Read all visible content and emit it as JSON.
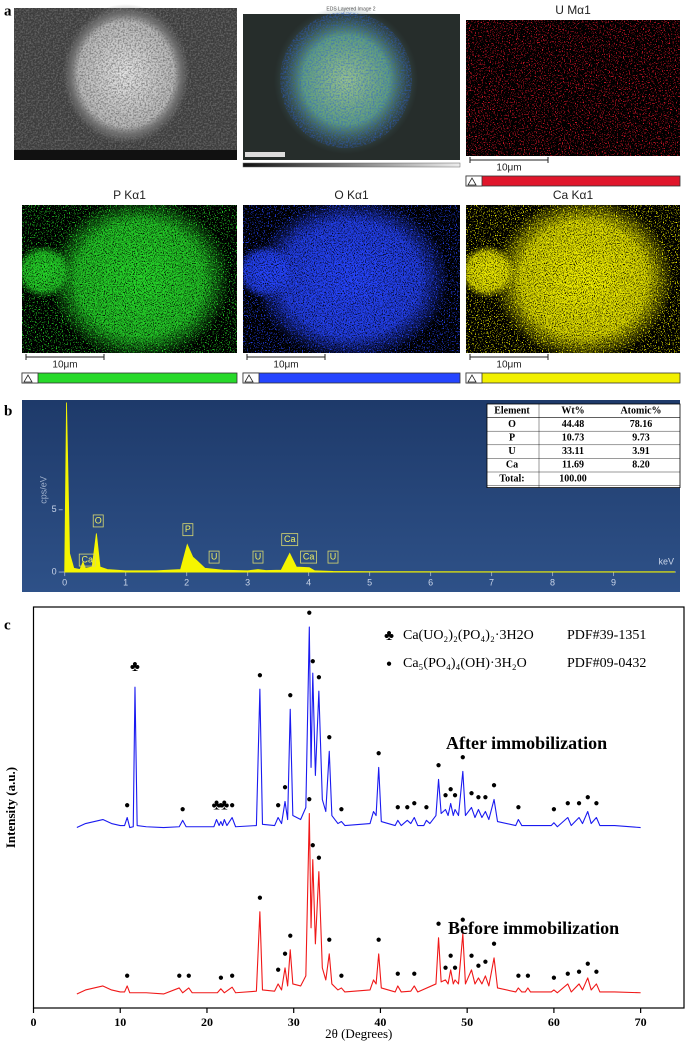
{
  "panel_a": {
    "label": "a",
    "layered_title": "EDS Layered Image 2",
    "maps": [
      {
        "title": "U Mα1",
        "scale": "10μm",
        "color": "#e0162b"
      },
      {
        "title": "P Kα1",
        "scale": "10μm",
        "color": "#27d92a"
      },
      {
        "title": "O Kα1",
        "scale": "10μm",
        "color": "#2545ff"
      },
      {
        "title": "Ca Kα1",
        "scale": "10μm",
        "color": "#f2f000"
      }
    ]
  },
  "chart_data": [
    {
      "type": "area",
      "panel_label": "b",
      "y_label": "cps/eV",
      "x_label": "keV",
      "xlim": [
        -0.7,
        10.09
      ],
      "ylim": [
        -1.6,
        13.8
      ],
      "xticks": [
        0,
        1,
        2,
        3,
        4,
        5,
        6,
        7,
        8,
        9
      ],
      "yticks": [
        0,
        5
      ],
      "series": [
        {
          "color": "#f5f500",
          "x": [
            0,
            0.03,
            0.08,
            0.15,
            0.25,
            0.3,
            0.34,
            0.45,
            0.52,
            0.58,
            0.7,
            1.0,
            1.5,
            1.9,
            2.01,
            2.1,
            2.17,
            2.3,
            2.6,
            3.0,
            3.17,
            3.3,
            3.55,
            3.69,
            3.8,
            4.01,
            4.1,
            4.4,
            5,
            7,
            10
          ],
          "values": [
            0,
            13.6,
            1.5,
            0.3,
            0.2,
            0.8,
            0.3,
            0.4,
            3.1,
            0.4,
            0.2,
            0.1,
            0.1,
            0.2,
            2.2,
            1.2,
            0.9,
            0.3,
            0.15,
            0.1,
            0.2,
            0.12,
            0.15,
            1.5,
            0.4,
            0.35,
            0.1,
            0.05,
            0.03,
            0.02,
            0.02
          ]
        }
      ],
      "peak_labels": [
        {
          "label": "Ca",
          "x": 0.37,
          "y": 0.96
        },
        {
          "label": "O",
          "x": 0.55,
          "y": 4.1
        },
        {
          "label": "P",
          "x": 2.02,
          "y": 3.4
        },
        {
          "label": "U",
          "x": 2.45,
          "y": 1.2
        },
        {
          "label": "U",
          "x": 3.17,
          "y": 1.2
        },
        {
          "label": "Ca",
          "x": 3.69,
          "y": 2.6
        },
        {
          "label": "Ca",
          "x": 4.0,
          "y": 1.2
        },
        {
          "label": "U",
          "x": 4.4,
          "y": 1.2
        }
      ],
      "table": {
        "columns": [
          "Element",
          "Wt%",
          "Atomic%"
        ],
        "rows": [
          [
            "O",
            "44.48",
            "78.16"
          ],
          [
            "P",
            "10.73",
            "9.73"
          ],
          [
            "U",
            "33.11",
            "3.91"
          ],
          [
            "Ca",
            "11.69",
            "8.20"
          ],
          [
            "Total:",
            "100.00"
          ]
        ]
      }
    },
    {
      "type": "line",
      "panel_label": "c",
      "x_label": "2θ (Degrees)",
      "y_label": "Intensity (a.u.)",
      "xlim": [
        0,
        75
      ],
      "ylim": [
        0,
        100
      ],
      "xticks": [
        0,
        10,
        20,
        30,
        40,
        50,
        60,
        70
      ],
      "phases": [
        {
          "symbol": "♣",
          "formula": "Ca(UO₂)₂(PO₄)₂·3H2O",
          "pdf": "PDF#39-1351"
        },
        {
          "symbol": "●",
          "formula": "Ca₅(PO₄)₄(OH)·3H₂O",
          "pdf": "PDF#09-0432"
        }
      ],
      "series": [
        {
          "name": "After immobilization",
          "color": "#1a1af0",
          "x": [
            5,
            6,
            7,
            8,
            9,
            10,
            10.5,
            10.8,
            11.1,
            11.5,
            11.7,
            11.95,
            13,
            15,
            16.8,
            17.2,
            17.6,
            20.8,
            21.1,
            21.4,
            21.6,
            21.8,
            22.0,
            22.3,
            22.9,
            23.3,
            25.7,
            26.1,
            26.4,
            27.8,
            28.2,
            28.6,
            29.0,
            29.3,
            29.6,
            29.9,
            30.8,
            31.4,
            31.8,
            32.0,
            32.2,
            32.5,
            32.9,
            33.3,
            33.7,
            34.1,
            34.4,
            35.1,
            35.5,
            35.9,
            38.8,
            39.2,
            39.5,
            39.8,
            40.1,
            41.7,
            42.0,
            42.4,
            43.1,
            43.5,
            43.9,
            44.3,
            45.0,
            45.3,
            45.7,
            46.4,
            46.7,
            47.0,
            47.5,
            47.8,
            48.1,
            48.4,
            48.6,
            49.0,
            49.5,
            49.8,
            50.5,
            50.9,
            51.3,
            51.7,
            52.1,
            52.5,
            53.1,
            53.5,
            55.6,
            55.9,
            56.3,
            59.7,
            60.0,
            60.4,
            61.6,
            62.0,
            62.9,
            63.3,
            63.9,
            64.3,
            64.9,
            65.3,
            67,
            70
          ],
          "values": [
            45,
            46,
            46.5,
            47,
            46,
            45.5,
            45.5,
            47.5,
            45,
            45.2,
            80,
            45.5,
            45.2,
            45,
            45.2,
            46.8,
            45.2,
            45.2,
            47,
            45.5,
            46.5,
            45.5,
            47,
            45.5,
            47.5,
            45.2,
            45.5,
            79.5,
            45.8,
            45.5,
            47.5,
            46,
            51.5,
            47,
            74.5,
            48,
            47,
            50,
            95,
            60,
            83.5,
            58,
            79,
            52,
            49,
            64,
            48,
            46,
            46.5,
            45.5,
            46,
            49,
            48,
            60,
            46.5,
            45.5,
            46.8,
            45.5,
            46.8,
            46,
            47.5,
            45.5,
            45.5,
            46.8,
            46,
            48,
            57,
            48.5,
            49.5,
            48,
            51,
            48,
            49.5,
            48,
            59,
            48,
            50,
            47.5,
            49.5,
            47.5,
            49,
            47,
            52,
            46.5,
            45.5,
            47,
            45.5,
            45.5,
            46.2,
            45.2,
            47.5,
            45.5,
            47.5,
            46,
            49,
            46,
            47.5,
            45.5,
            45.5,
            45
          ],
          "phase_marks": [
            {
              "x": [
                11.7,
                21.1,
                22.0
              ],
              "y": [
                85,
                50.5,
                50.5
              ]
            },
            {
              "x": [
                10.8,
                17.2,
                21.6,
                22.9,
                26.1,
                28.2,
                29.0,
                29.6,
                31.8,
                32.2,
                32.9,
                34.1,
                35.5,
                39.8,
                42.0,
                43.1,
                43.9,
                45.3,
                46.7,
                47.5,
                48.1,
                48.6,
                49.5,
                50.5,
                51.3,
                52.1,
                53.1,
                55.9,
                60.0,
                61.6,
                62.9,
                63.9,
                64.9
              ],
              "y": [
                50.5,
                49.5,
                50.5,
                50.5,
                83,
                50.5,
                55,
                78,
                98.5,
                86.5,
                82.5,
                67.5,
                49.5,
                63.5,
                50,
                50,
                51,
                50,
                60.5,
                53,
                54.5,
                53,
                62.5,
                53.5,
                52.5,
                52.5,
                55.5,
                50,
                49.5,
                51,
                51,
                52.5,
                51
              ]
            }
          ]
        },
        {
          "name": "Before immobilization",
          "color": "#f01818",
          "x": [
            5,
            6,
            7,
            8,
            9,
            10,
            10.5,
            10.8,
            11.1,
            13,
            15,
            16.8,
            17.2,
            17.9,
            18.3,
            21.2,
            21.6,
            22.0,
            22.9,
            23.3,
            25.7,
            26.1,
            26.4,
            27.8,
            28.2,
            28.6,
            29.0,
            29.3,
            29.6,
            29.9,
            30.8,
            31.4,
            31.8,
            32.0,
            32.2,
            32.5,
            32.9,
            33.3,
            33.7,
            34.1,
            34.4,
            35.1,
            35.5,
            35.9,
            38.8,
            39.2,
            39.5,
            39.8,
            40.1,
            41.7,
            42.0,
            42.4,
            43.5,
            43.9,
            44.3,
            46.4,
            46.7,
            47.0,
            47.5,
            47.8,
            48.1,
            48.4,
            48.6,
            49.0,
            49.5,
            49.8,
            50.5,
            50.9,
            51.3,
            51.7,
            52.1,
            52.5,
            53.1,
            53.5,
            55.6,
            55.9,
            56.3,
            56.7,
            57.0,
            57.3,
            59.7,
            60.0,
            60.4,
            61.6,
            62.0,
            62.9,
            63.3,
            63.9,
            64.3,
            64.9,
            65.3,
            67,
            70
          ],
          "values": [
            3.5,
            4.5,
            5,
            5.5,
            4.5,
            4,
            4,
            5.5,
            3.8,
            3.8,
            3.5,
            5,
            3.8,
            5,
            3.8,
            3.8,
            4.8,
            3.8,
            5.2,
            3.8,
            4.2,
            24,
            4.5,
            4.2,
            6,
            4.5,
            10,
            5.5,
            14.5,
            6,
            5.5,
            8,
            48.5,
            20,
            37,
            16,
            34,
            10,
            7,
            13.5,
            6,
            4.5,
            5,
            4,
            4.5,
            7,
            6,
            13.5,
            5,
            4,
            5.5,
            4,
            4.2,
            5.5,
            4,
            6,
            17.5,
            6.5,
            7,
            6,
            9.5,
            6,
            7,
            6,
            18.5,
            6,
            9.5,
            6,
            7.5,
            6,
            8,
            5.5,
            12.5,
            5,
            4,
            5,
            4,
            4,
            5,
            4,
            4,
            4.5,
            3.8,
            6,
            4,
            6,
            4.5,
            7.5,
            4.5,
            6,
            4,
            4,
            3.8
          ],
          "phase_marks": [
            {
              "x": [],
              "y": []
            },
            {
              "x": [
                10.8,
                16.8,
                17.9,
                21.6,
                22.9,
                26.1,
                28.2,
                29.0,
                29.6,
                31.8,
                32.2,
                32.9,
                34.1,
                35.5,
                39.8,
                42.0,
                43.9,
                46.7,
                47.5,
                48.1,
                48.6,
                49.5,
                50.5,
                51.3,
                52.1,
                53.1,
                55.9,
                57.0,
                60.0,
                61.6,
                62.9,
                63.9,
                64.9
              ],
              "y": [
                8,
                8,
                8,
                7.5,
                8,
                27.5,
                9.5,
                13.5,
                18,
                52,
                40.5,
                37.5,
                17,
                8,
                17,
                8.5,
                8.5,
                21,
                10,
                13,
                10,
                22,
                13,
                10.5,
                11.5,
                16,
                8,
                8,
                7.5,
                8.5,
                9,
                11,
                9
              ]
            }
          ]
        }
      ]
    }
  ]
}
